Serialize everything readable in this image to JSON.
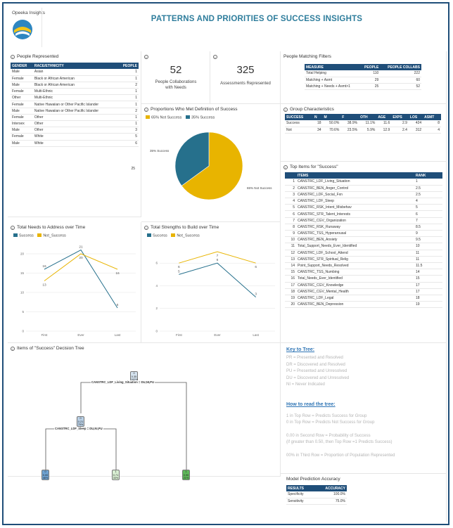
{
  "header": {
    "logo_text": "Opeeka Insights",
    "title": "PATTERNS AND PRIORITIES OF SUCCESS INSIGHTS"
  },
  "colors": {
    "accent": "#1f4e79",
    "success": "#26708c",
    "not_success": "#e8b400",
    "title": "#2e7d9c"
  },
  "people_represented": {
    "title": "People Represented",
    "columns": [
      "GENDER",
      "RACE/ETHNICITY",
      "PEOPLE"
    ],
    "rows": [
      [
        "Male",
        "Asian",
        "1"
      ],
      [
        "Female",
        "Black or African American",
        "1"
      ],
      [
        "Male",
        "Black or African American",
        "2"
      ],
      [
        "Female",
        "Multi-Ethnic",
        "1"
      ],
      [
        "Other",
        "Multi-Ethnic",
        "1"
      ],
      [
        "Female",
        "Native Hawaiian or Other Pacific Islander",
        "1"
      ],
      [
        "Male",
        "Native Hawaiian or Other Pacific Islander",
        "2"
      ],
      [
        "Female",
        "Other",
        "1"
      ],
      [
        "Intersex",
        "Other",
        "1"
      ],
      [
        "Male",
        "Other",
        "3"
      ],
      [
        "Female",
        "White",
        "5"
      ],
      [
        "Male",
        "White",
        "6"
      ]
    ],
    "total": "25"
  },
  "kpi": {
    "collaborations_value": "52",
    "collaborations_label": "People Collaborations with Needs",
    "assessments_value": "325",
    "assessments_label": "Assessments Represented"
  },
  "people_matching": {
    "title": "People Matching Filters",
    "columns": [
      "MEASURE",
      "PEOPLE",
      "PEOPLE COLLABS"
    ],
    "rows": [
      [
        "Total Helping",
        "110",
        "222"
      ],
      [
        "Matching + Asmt",
        "29",
        "60"
      ],
      [
        "Matching + Needs + Asmt>1",
        "25",
        "52"
      ]
    ]
  },
  "proportions": {
    "title": "Proportions Who Met Definition of Success",
    "legend": [
      "65% Not Success",
      "35% Success"
    ],
    "label_success": "35% Success",
    "label_not_success": "65% Not Success"
  },
  "group_characteristics": {
    "title": "Group Characteristics",
    "columns": [
      "SUCCESS",
      "N",
      "M",
      "F",
      "OTH",
      "AGE",
      "EXPS",
      "LOS",
      "ASMT"
    ],
    "rows": [
      [
        "Success",
        "18",
        "50.0%",
        "38.9%",
        "11.1%",
        "11.6",
        "2.9",
        "424",
        "8"
      ],
      [
        "Not",
        "34",
        "70.6%",
        "23.5%",
        "5.9%",
        "12.9",
        "2.4",
        "312",
        "4"
      ]
    ]
  },
  "top_items": {
    "title": "Top Items for \"Success\"",
    "columns": [
      "",
      "ITEMS",
      "RANK"
    ],
    "rows": [
      [
        "1",
        "CANSTRC_LDF_Living_Situation",
        "1"
      ],
      [
        "2",
        "CANSTRC_BEN_Anger_Control",
        "2.5"
      ],
      [
        "3",
        "CANSTRC_LDF_Social_Fxn",
        "2.5"
      ],
      [
        "4",
        "CANSTRC_LDF_Sleep",
        "4"
      ],
      [
        "5",
        "CANSTRC_RSK_Intent_Misbehav",
        "5"
      ],
      [
        "6",
        "CANSTRC_STR_Talent_Interests",
        "6"
      ],
      [
        "7",
        "CANSTRC_CGV_Organization",
        "7"
      ],
      [
        "8",
        "CANSTRC_RSK_Runaway",
        "8.5"
      ],
      [
        "9",
        "CANSTRC_TSS_Hyperarousal",
        "9"
      ],
      [
        "10",
        "CANSTRC_BEN_Anxiety",
        "9.5"
      ],
      [
        "11",
        "Total_Support_Needs_Ever_Identified",
        "10"
      ],
      [
        "12",
        "CANSTRC_LDF_School_Attend",
        "11"
      ],
      [
        "13",
        "CANSTRC_STR_Spiritual_Relig",
        "11"
      ],
      [
        "14",
        "Point_Support_Needs_Resolved",
        "11.5"
      ],
      [
        "15",
        "CANSTRC_TSS_Numbing",
        "14"
      ],
      [
        "16",
        "Total_Needs_Ever_Identified",
        "15"
      ],
      [
        "17",
        "CANSTRC_CGV_Knowledge",
        "17"
      ],
      [
        "18",
        "CANSTRC_CGV_Mental_Health",
        "17"
      ],
      [
        "19",
        "CANSTRC_LDF_Legal",
        "18"
      ],
      [
        "20",
        "CANSTRC_BEN_Depression",
        "19"
      ]
    ]
  },
  "needs_chart": {
    "title": "Total Needs to Address over Time",
    "legend": [
      "Success",
      "Not_Success"
    ]
  },
  "strengths_chart": {
    "title": "Total Strengths to Build over Time",
    "legend": [
      "Success",
      "Not_Success"
    ]
  },
  "chart_data": [
    {
      "type": "pie",
      "categories": [
        "Not Success",
        "Success"
      ],
      "values": [
        65,
        35
      ]
    },
    {
      "type": "line",
      "categories": [
        "First",
        "Ever",
        "Last"
      ],
      "series": [
        {
          "name": "Success",
          "values": [
            16,
            21,
            6
          ]
        },
        {
          "name": "Not_Success",
          "values": [
            13,
            20,
            16
          ]
        }
      ],
      "ylim": [
        0,
        22
      ],
      "yticks": [
        "0",
        "5",
        "10",
        "15",
        "20"
      ]
    },
    {
      "type": "line",
      "categories": [
        "First",
        "Ever",
        "Last"
      ],
      "series": [
        {
          "name": "Success",
          "values": [
            5,
            6,
            3
          ]
        },
        {
          "name": "Not_Success",
          "values": [
            6,
            7,
            6
          ]
        }
      ],
      "ylim": [
        0,
        7.5
      ],
      "yticks": [
        "0",
        "2",
        "4",
        "6"
      ]
    }
  ],
  "tree": {
    "title": "Items of \"Success\" Decision Tree",
    "root": [
      "0",
      "0.35",
      "100%"
    ],
    "root_split": "CANSTRC_LDF_Living_Situation = DU,NI,PU",
    "mid": [
      "0",
      "0.21",
      "79%"
    ],
    "mid_split": "CANSTRC_LDF_Sleep = DU,NI,PU",
    "leaf1": [
      "0",
      "0.00",
      "46%"
    ],
    "leaf2": [
      "1",
      "0.71",
      "33%"
    ],
    "leaf3": [
      "1",
      "0.90",
      "21%"
    ],
    "branch_yes": "yes",
    "branch_no": "no"
  },
  "key": {
    "title": "Key to Tree:",
    "items": [
      "PR = Presented and Resolved",
      "DR = Discovered and Resolved",
      "PU = Presented and Unresolved",
      "DU = Discovered and Unresolved",
      "NI = Never Indicated"
    ],
    "how_title": "How to read the tree:",
    "how1": "1 in Top Row = Predicts Success for Group",
    "how2": "0 in Top Row = Predicts Not Success for Group",
    "how3": "0.00 in Second Row = Probability of Success",
    "how4": "(if greater than 0.50, then Top Row =1 Predicts Success)",
    "how5": "00% in Third Row = Proportion of Population Represented"
  },
  "accuracy": {
    "title": "Model Prediction Accuracy",
    "columns": [
      "RESULTS",
      "ACCURACY"
    ],
    "rows": [
      [
        "Specificity",
        "100.0%"
      ],
      [
        "Sensitivity",
        "75.0%"
      ]
    ]
  }
}
